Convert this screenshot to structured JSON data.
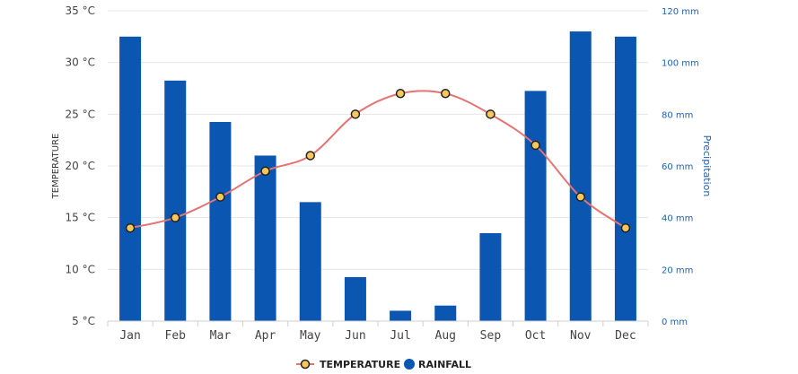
{
  "chart_data": {
    "type": "bar",
    "categories": [
      "Jan",
      "Feb",
      "Mar",
      "Apr",
      "May",
      "Jun",
      "Jul",
      "Aug",
      "Sep",
      "Oct",
      "Nov",
      "Dec"
    ],
    "series": [
      {
        "name": "TEMPERATURE",
        "chart": "line",
        "axis": "left",
        "values": [
          14,
          15,
          17,
          19.5,
          21,
          25,
          27,
          27,
          25,
          22,
          17,
          14
        ]
      },
      {
        "name": "RAINFALL",
        "chart": "bar",
        "axis": "right",
        "values": [
          110,
          93,
          77,
          64,
          46,
          17,
          4,
          6,
          34,
          89,
          112,
          110
        ]
      }
    ],
    "ylabel": "TEMPERATURE",
    "y2label": "Precipitation",
    "ylim": [
      5,
      35
    ],
    "y2lim": [
      0,
      120
    ],
    "yticks": [
      "5 °C",
      "10 °C",
      "15 °C",
      "20 °C",
      "25 °C",
      "30 °C",
      "35 °C"
    ],
    "y2ticks": [
      "0 mm",
      "20 mm",
      "40 mm",
      "60 mm",
      "80 mm",
      "100 mm",
      "120 mm"
    ],
    "grid": true,
    "legend_position": "bottom",
    "colors": {
      "temperature_line": "#e57373",
      "marker_fill": "#f6c75a",
      "marker_stroke": "#222222",
      "bars": "#0a56b0",
      "right_axis": "#1f5fb4"
    }
  }
}
